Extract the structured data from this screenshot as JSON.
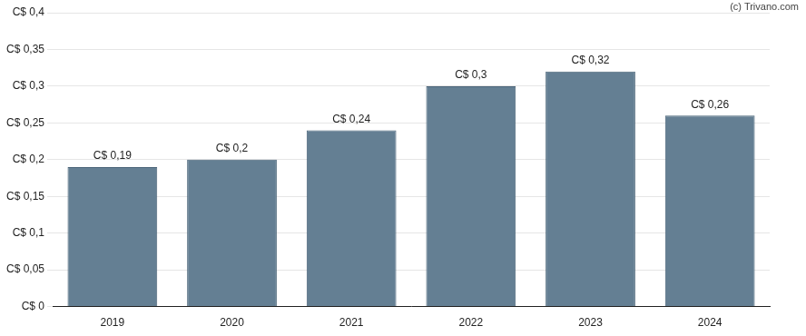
{
  "chart_data": {
    "type": "bar",
    "annotation": "(c) Trivano.com",
    "categories": [
      "2019",
      "2020",
      "2021",
      "2022",
      "2023",
      "2024"
    ],
    "values": [
      0.19,
      0.2,
      0.24,
      0.3,
      0.32,
      0.26
    ],
    "value_labels": [
      "C$ 0,19",
      "C$ 0,2",
      "C$ 0,24",
      "C$ 0,3",
      "C$ 0,32",
      "C$ 0,26"
    ],
    "data_labels": true,
    "color": "#647f93",
    "ylim": [
      0,
      0.4
    ],
    "yticks": [
      {
        "value": 0,
        "label": "C$ 0"
      },
      {
        "value": 0.05,
        "label": "C$ 0,05"
      },
      {
        "value": 0.1,
        "label": "C$ 0,1"
      },
      {
        "value": 0.15,
        "label": "C$ 0,15"
      },
      {
        "value": 0.2,
        "label": "C$ 0,2"
      },
      {
        "value": 0.25,
        "label": "C$ 0,25"
      },
      {
        "value": 0.3,
        "label": "C$ 0,3"
      },
      {
        "value": 0.35,
        "label": "C$ 0,35"
      },
      {
        "value": 0.4,
        "label": "C$ 0,4"
      }
    ],
    "grid": true
  }
}
